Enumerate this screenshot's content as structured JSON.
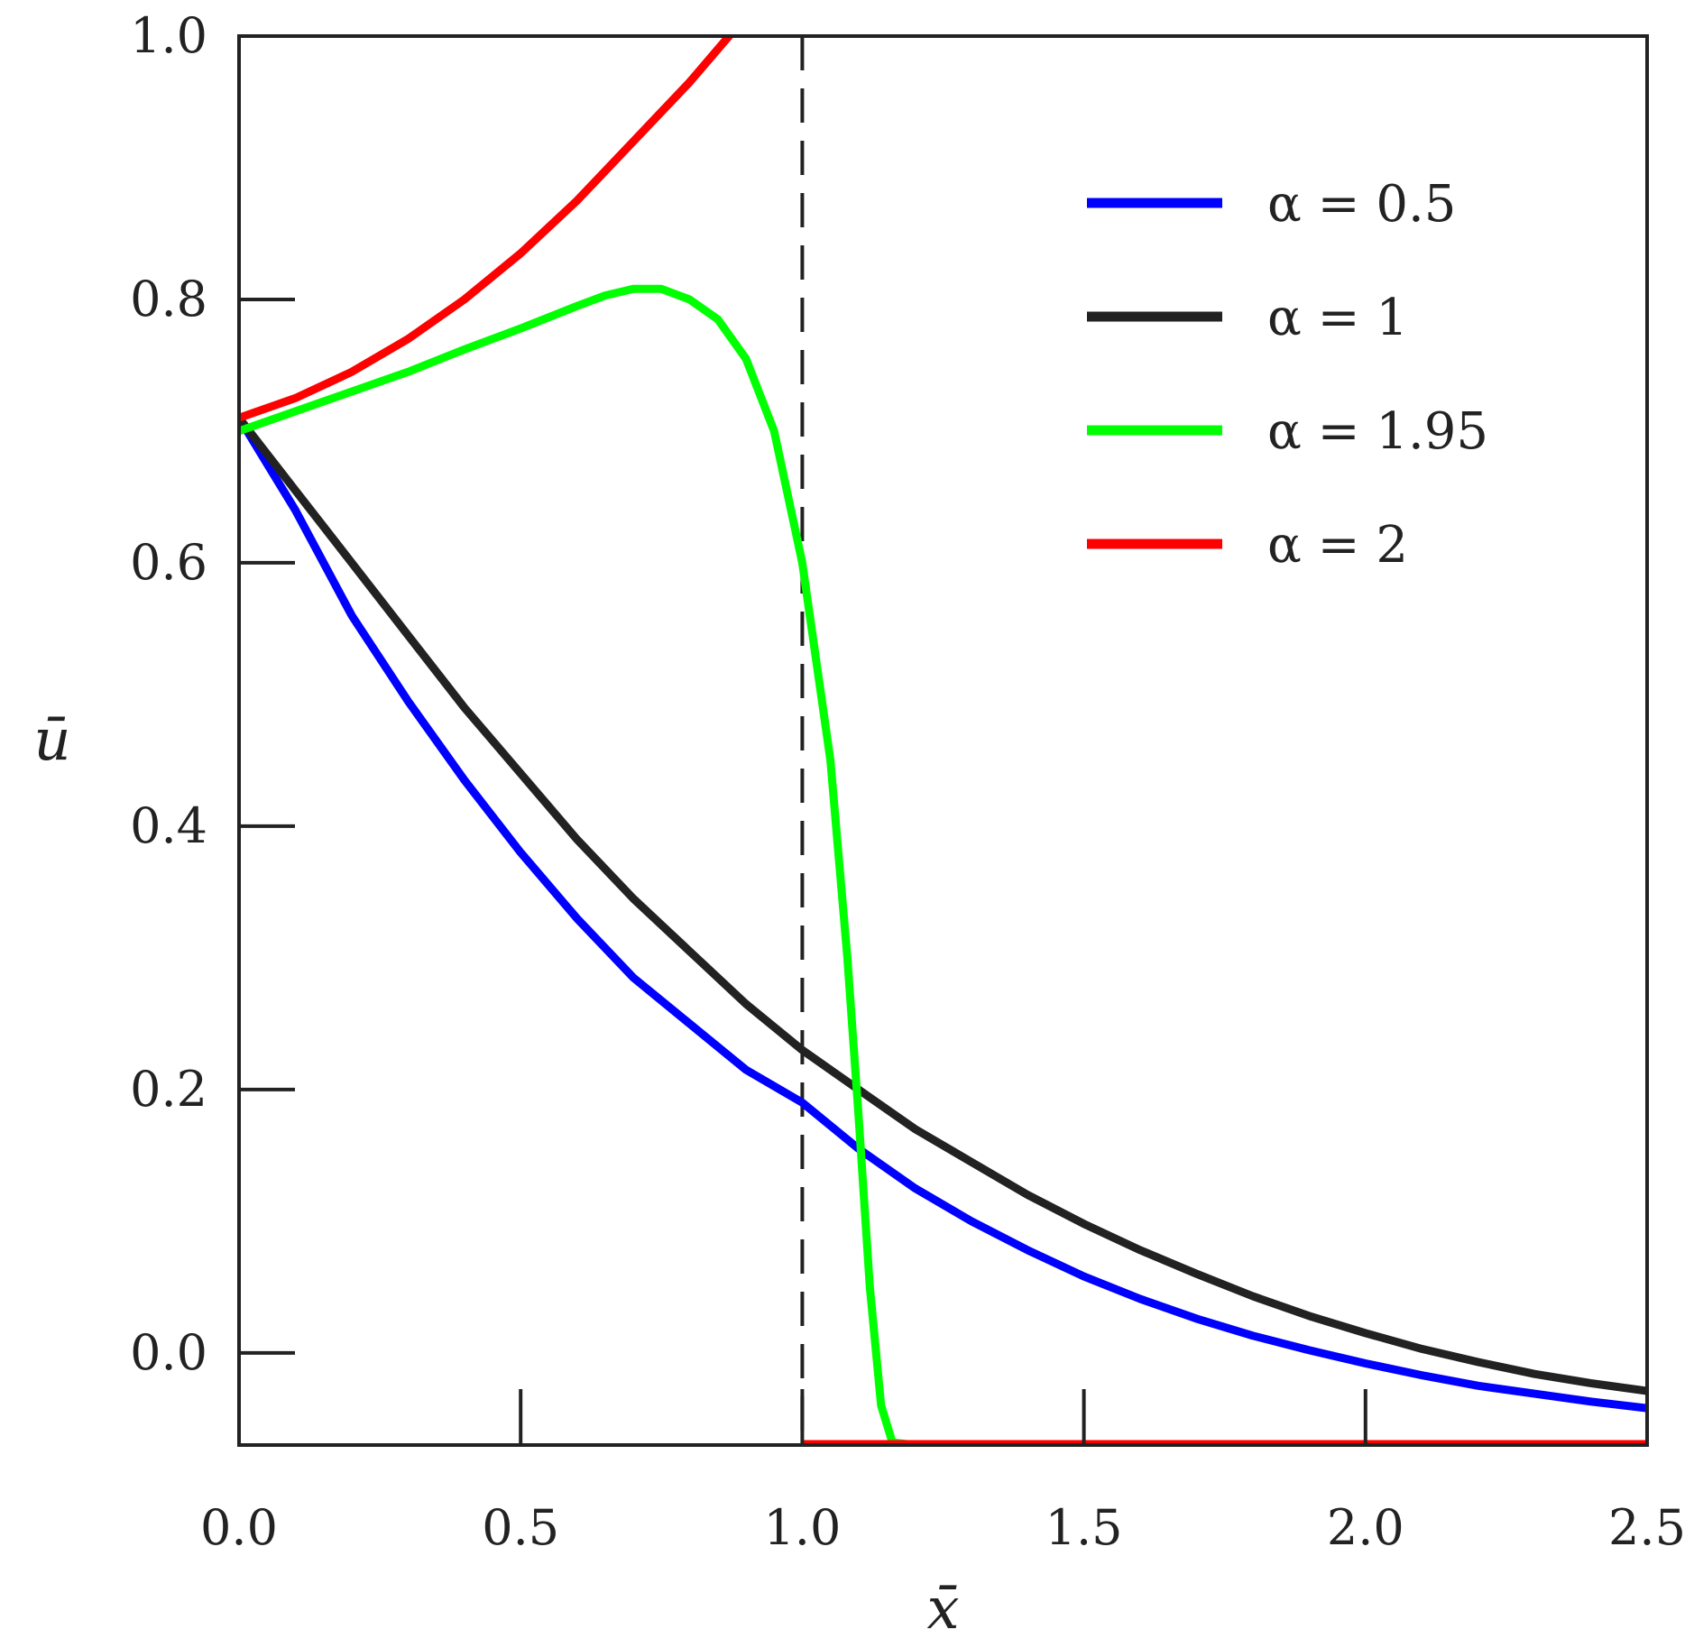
{
  "chart_data": {
    "type": "line",
    "xlabel": "x̄",
    "ylabel": "ū",
    "xlim": [
      0.0,
      2.5
    ],
    "ylim": [
      -0.07,
      1.0
    ],
    "x_ticks": [
      "0.0",
      "0.5",
      "1.0",
      "1.5",
      "2.0",
      "2.5"
    ],
    "y_ticks": [
      "0.0",
      "0.2",
      "0.4",
      "0.6",
      "0.8",
      "1.0"
    ],
    "x_tick_values": [
      0.0,
      0.5,
      1.0,
      1.5,
      2.0,
      2.5
    ],
    "y_tick_values": [
      0.0,
      0.2,
      0.4,
      0.6,
      0.8,
      1.0
    ],
    "grid": false,
    "legend_position": "top-right",
    "reference_line": {
      "x": 1.0,
      "style": "dashed",
      "color": "#222222"
    },
    "series": [
      {
        "name": "α = 0.5",
        "color": "#0000ff",
        "points": [
          [
            0.0,
            0.71
          ],
          [
            0.1,
            0.64
          ],
          [
            0.2,
            0.56
          ],
          [
            0.3,
            0.495
          ],
          [
            0.4,
            0.435
          ],
          [
            0.5,
            0.38
          ],
          [
            0.6,
            0.33
          ],
          [
            0.7,
            0.285
          ],
          [
            0.8,
            0.25
          ],
          [
            0.9,
            0.215
          ],
          [
            1.0,
            0.19
          ],
          [
            1.1,
            0.155
          ],
          [
            1.2,
            0.125
          ],
          [
            1.3,
            0.1
          ],
          [
            1.4,
            0.078
          ],
          [
            1.5,
            0.058
          ],
          [
            1.6,
            0.041
          ],
          [
            1.7,
            0.026
          ],
          [
            1.8,
            0.013
          ],
          [
            1.9,
            0.002
          ],
          [
            2.0,
            -0.008
          ],
          [
            2.1,
            -0.017
          ],
          [
            2.2,
            -0.025
          ],
          [
            2.3,
            -0.031
          ],
          [
            2.4,
            -0.037
          ],
          [
            2.5,
            -0.042
          ]
        ]
      },
      {
        "name": "α = 1",
        "color": "#222222",
        "points": [
          [
            0.0,
            0.71
          ],
          [
            0.1,
            0.655
          ],
          [
            0.2,
            0.6
          ],
          [
            0.3,
            0.545
          ],
          [
            0.4,
            0.49
          ],
          [
            0.5,
            0.44
          ],
          [
            0.6,
            0.39
          ],
          [
            0.7,
            0.345
          ],
          [
            0.8,
            0.305
          ],
          [
            0.9,
            0.265
          ],
          [
            1.0,
            0.23
          ],
          [
            1.1,
            0.2
          ],
          [
            1.2,
            0.17
          ],
          [
            1.3,
            0.145
          ],
          [
            1.4,
            0.12
          ],
          [
            1.5,
            0.098
          ],
          [
            1.6,
            0.078
          ],
          [
            1.7,
            0.06
          ],
          [
            1.8,
            0.043
          ],
          [
            1.9,
            0.028
          ],
          [
            2.0,
            0.015
          ],
          [
            2.1,
            0.003
          ],
          [
            2.2,
            -0.007
          ],
          [
            2.3,
            -0.016
          ],
          [
            2.4,
            -0.023
          ],
          [
            2.5,
            -0.029
          ]
        ]
      },
      {
        "name": "α = 1.95",
        "color": "#00ff00",
        "points": [
          [
            0.0,
            0.7
          ],
          [
            0.1,
            0.715
          ],
          [
            0.2,
            0.73
          ],
          [
            0.3,
            0.745
          ],
          [
            0.4,
            0.762
          ],
          [
            0.5,
            0.778
          ],
          [
            0.6,
            0.795
          ],
          [
            0.65,
            0.803
          ],
          [
            0.7,
            0.808
          ],
          [
            0.75,
            0.808
          ],
          [
            0.8,
            0.8
          ],
          [
            0.85,
            0.785
          ],
          [
            0.9,
            0.755
          ],
          [
            0.95,
            0.7
          ],
          [
            1.0,
            0.6
          ],
          [
            1.05,
            0.45
          ],
          [
            1.08,
            0.3
          ],
          [
            1.1,
            0.18
          ],
          [
            1.12,
            0.05
          ],
          [
            1.14,
            -0.04
          ],
          [
            1.16,
            -0.068
          ],
          [
            1.2,
            -0.07
          ],
          [
            2.5,
            -0.07
          ]
        ]
      },
      {
        "name": "α = 2",
        "color": "#ff0000",
        "points": [
          [
            0.0,
            0.71
          ],
          [
            0.1,
            0.725
          ],
          [
            0.2,
            0.745
          ],
          [
            0.3,
            0.77
          ],
          [
            0.4,
            0.8
          ],
          [
            0.5,
            0.835
          ],
          [
            0.6,
            0.875
          ],
          [
            0.7,
            0.92
          ],
          [
            0.8,
            0.965
          ],
          [
            0.9,
            1.015
          ],
          [
            1.0,
            1.07
          ]
        ],
        "tail": [
          [
            1.0,
            -0.07
          ],
          [
            2.5,
            -0.07
          ]
        ]
      }
    ]
  }
}
